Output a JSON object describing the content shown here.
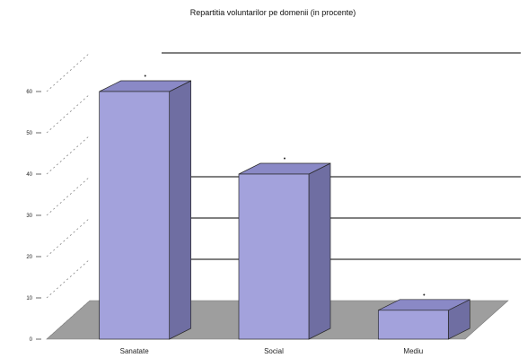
{
  "chart_data": {
    "type": "bar",
    "title": "Repartitia voluntarilor pe domenii (in procente)",
    "xlabel": "",
    "ylabel": "",
    "categories": [
      "Sanatate",
      "Social",
      "Mediu"
    ],
    "values": [
      60,
      40,
      7
    ],
    "value_labels": [
      "•",
      "•",
      "•"
    ],
    "y_tick_labels": [
      "0",
      "10",
      "20",
      "30",
      "40",
      "50",
      "60"
    ],
    "ylim": [
      0,
      60
    ],
    "grid": true,
    "legend": "none",
    "colors": {
      "bar_front": "#a3a2dc",
      "bar_side": "#6f6ea2",
      "bar_top": "#8a89c6",
      "floor": "#9e9e9e",
      "grid": "#000000",
      "bar_stroke": "#2a2a2a"
    }
  }
}
